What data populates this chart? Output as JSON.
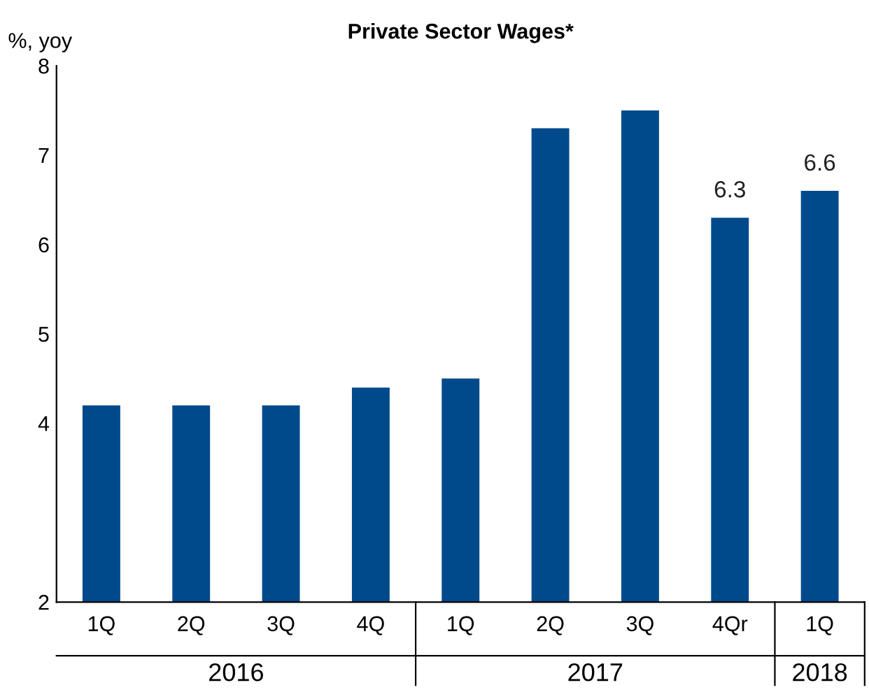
{
  "chart_data": {
    "type": "bar",
    "title": "Private Sector Wages*",
    "ylabel": "%, yoy",
    "categories": [
      "1Q",
      "2Q",
      "3Q",
      "4Q",
      "1Q",
      "2Q",
      "3Q",
      "4Qr",
      "1Q"
    ],
    "values": [
      4.2,
      4.2,
      4.2,
      4.4,
      4.5,
      7.3,
      7.5,
      6.3,
      6.6
    ],
    "value_labels": [
      null,
      null,
      null,
      null,
      null,
      null,
      null,
      "6.3",
      "6.6"
    ],
    "color": "#004a8c",
    "ylim": [
      2,
      8
    ],
    "yticks": [
      2,
      4,
      5,
      6,
      7,
      8
    ],
    "annotations": [
      "2016",
      "2017",
      "2018"
    ],
    "grid": false,
    "legend": false
  }
}
